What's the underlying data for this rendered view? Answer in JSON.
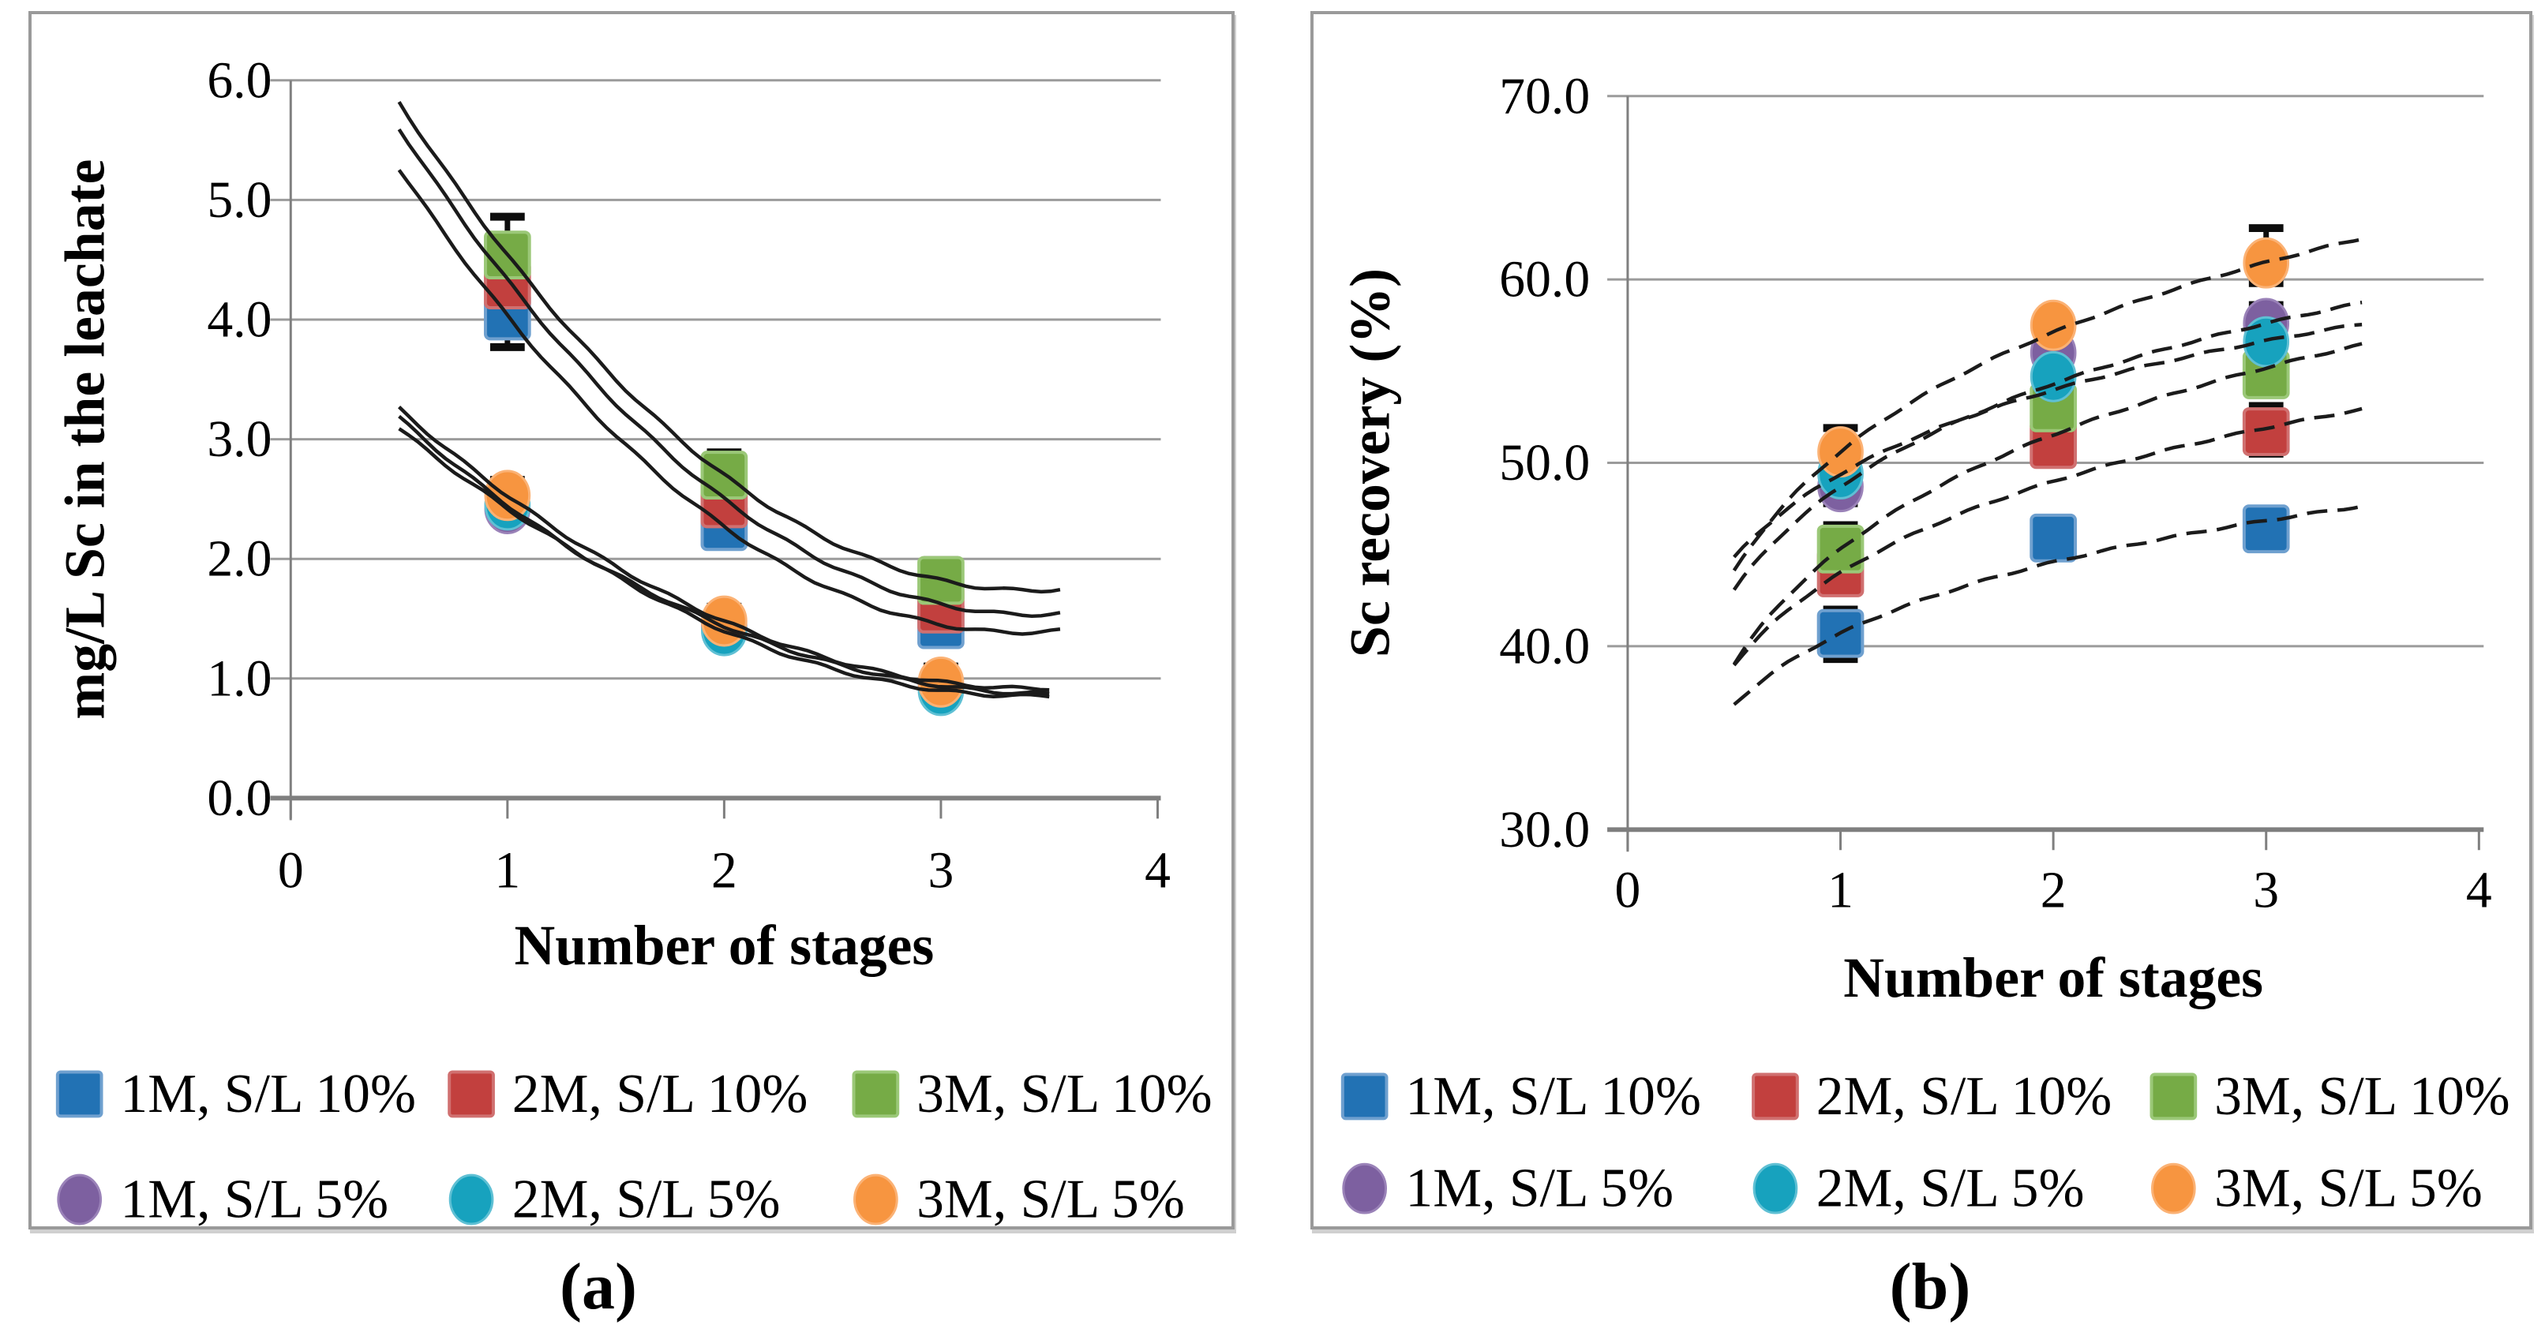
{
  "colors": {
    "blue": "#2272B4",
    "blue_edge": "#6FA0CF",
    "red": "#C2403E",
    "red_edge": "#D07070",
    "green": "#76AB46",
    "green_edge": "#9BC878",
    "purple": "#7D60A0",
    "purple_edge": "#9A82B8",
    "teal": "#17A2BE",
    "teal_edge": "#5FC0D4",
    "orange": "#F79540",
    "orange_edge": "#FBB275",
    "trend": "#1b1b1b",
    "grid": "#9b9b9b",
    "axis": "#7f7f7f",
    "error": "#0d0d0d",
    "text": "#000000",
    "panel_border": "#9a9a9a"
  },
  "chart_data": [
    {
      "id": "a",
      "caption": "(a)",
      "type": "scatter",
      "title": "",
      "xlabel": "Number of stages",
      "ylabel": "mg/L Sc in the leachate",
      "xlim": [
        0,
        4
      ],
      "ylim": [
        0,
        6
      ],
      "grid": true,
      "legend_position": "bottom",
      "xtick_values": [
        0,
        1,
        2,
        3,
        4
      ],
      "xtick_labels": [
        "0",
        "1",
        "2",
        "3",
        "4"
      ],
      "ytick_values": [
        0,
        1,
        2,
        3,
        4,
        5,
        6
      ],
      "ytick_labels": [
        "0.0",
        "1.0",
        "2.0",
        "3.0",
        "4.0",
        "5.0",
        "6.0"
      ],
      "line_style": "solid",
      "series": [
        {
          "name": "1M, S/L 10%",
          "marker": "square",
          "color": "blue",
          "points": [
            [
              1,
              4.03
            ],
            [
              2,
              2.27
            ],
            [
              3,
              1.45
            ]
          ]
        },
        {
          "name": "2M, S/L 10%",
          "marker": "square",
          "color": "red",
          "points": [
            [
              1,
              4.29
            ],
            [
              2,
              2.46
            ],
            [
              3,
              1.58
            ]
          ]
        },
        {
          "name": "3M, S/L 10%",
          "marker": "square",
          "color": "green",
          "points": [
            [
              1,
              4.54
            ],
            [
              2,
              2.7
            ],
            [
              3,
              1.82
            ]
          ]
        },
        {
          "name": "1M, S/L 5%",
          "marker": "circle",
          "color": "purple",
          "points": [
            [
              1,
              2.42
            ],
            [
              2,
              1.44
            ],
            [
              3,
              0.94
            ]
          ]
        },
        {
          "name": "2M, S/L 5%",
          "marker": "circle",
          "color": "teal",
          "points": [
            [
              1,
              2.45
            ],
            [
              2,
              1.4
            ],
            [
              3,
              0.9
            ]
          ]
        },
        {
          "name": "3M, S/L 5%",
          "marker": "circle",
          "color": "orange",
          "points": [
            [
              1,
              2.53
            ],
            [
              2,
              1.48
            ],
            [
              3,
              0.97
            ]
          ]
        }
      ],
      "trendlines": [
        {
          "fit": "quadratic",
          "a": 0.48,
          "b": -3.28,
          "c": 7.34,
          "x_start": 0.5,
          "x_end": 3.55
        },
        {
          "fit": "quadratic",
          "a": 0.475,
          "b": -3.255,
          "c": 7.11,
          "x_start": 0.5,
          "x_end": 3.55
        },
        {
          "fit": "quadratic",
          "a": 0.47,
          "b": -3.17,
          "c": 6.73,
          "x_start": 0.5,
          "x_end": 3.55
        },
        {
          "fit": "quadratic",
          "a": 0.24,
          "b": -1.7,
          "c": 3.88,
          "x_start": 0.5,
          "x_end": 3.5
        },
        {
          "fit": "quadratic",
          "a": 0.275,
          "b": -1.875,
          "c": 4.05,
          "x_start": 0.5,
          "x_end": 3.5
        },
        {
          "fit": "quadratic",
          "a": 0.27,
          "b": -1.86,
          "c": 4.12,
          "x_start": 0.5,
          "x_end": 3.5
        }
      ],
      "error_bars": [
        {
          "x": 1,
          "lo": 3.77,
          "hi": 4.86
        },
        {
          "x": 1,
          "lo": 4.24,
          "hi": 4.33
        },
        {
          "x": 1,
          "lo": 2.36,
          "hi": 2.66
        },
        {
          "x": 2,
          "lo": 2.52,
          "hi": 2.89
        },
        {
          "x": 2,
          "lo": 1.34,
          "hi": 1.6
        },
        {
          "x": 3,
          "lo": 1.62,
          "hi": 1.99
        },
        {
          "x": 3,
          "lo": 0.85,
          "hi": 1.1
        }
      ]
    },
    {
      "id": "b",
      "caption": "(b)",
      "type": "scatter",
      "title": "",
      "xlabel": "Number of stages",
      "ylabel": "Sc recovery (%)",
      "xlim": [
        0,
        4
      ],
      "ylim": [
        30,
        70
      ],
      "grid": true,
      "legend_position": "bottom",
      "xtick_values": [
        0,
        1,
        2,
        3,
        4
      ],
      "xtick_labels": [
        "0",
        "1",
        "2",
        "3",
        "4"
      ],
      "ytick_values": [
        30,
        40,
        50,
        60,
        70
      ],
      "ytick_labels": [
        "30.0",
        "40.0",
        "50.0",
        "60.0",
        "70.0"
      ],
      "line_style": "dashed",
      "series": [
        {
          "name": "1M, S/L 10%",
          "marker": "square",
          "color": "blue",
          "points": [
            [
              1,
              40.7
            ],
            [
              2,
              45.9
            ],
            [
              3,
              46.4
            ]
          ]
        },
        {
          "name": "2M, S/L 10%",
          "marker": "square",
          "color": "red",
          "points": [
            [
              1,
              44.0
            ],
            [
              2,
              51.0
            ],
            [
              3,
              51.7
            ]
          ]
        },
        {
          "name": "3M, S/L 10%",
          "marker": "square",
          "color": "green",
          "points": [
            [
              1,
              45.3
            ],
            [
              2,
              53.0
            ],
            [
              3,
              54.8
            ]
          ]
        },
        {
          "name": "1M, S/L 5%",
          "marker": "circle",
          "color": "purple",
          "points": [
            [
              1,
              48.7
            ],
            [
              2,
              56.0
            ],
            [
              3,
              57.6
            ]
          ]
        },
        {
          "name": "2M, S/L 5%",
          "marker": "circle",
          "color": "teal",
          "points": [
            [
              1,
              49.4
            ],
            [
              2,
              54.7
            ],
            [
              3,
              56.6
            ]
          ]
        },
        {
          "name": "3M, S/L 5%",
          "marker": "circle",
          "color": "orange",
          "points": [
            [
              1,
              50.6
            ],
            [
              2,
              57.5
            ],
            [
              3,
              60.9
            ]
          ]
        }
      ],
      "trendlines": [
        {
          "fit": "log",
          "y1": 40.7,
          "k": 5.6,
          "x_start": 0.5,
          "x_end": 3.45
        },
        {
          "fit": "log",
          "y1": 44.0,
          "k": 7.2,
          "x_start": 0.5,
          "x_end": 3.45
        },
        {
          "fit": "log",
          "y1": 45.3,
          "k": 9.0,
          "x_start": 0.5,
          "x_end": 3.45
        },
        {
          "fit": "log",
          "y1": 48.7,
          "k": 8.1,
          "x_start": 0.5,
          "x_end": 3.45
        },
        {
          "fit": "log",
          "y1": 49.4,
          "k": 6.6,
          "x_start": 0.5,
          "x_end": 3.45
        },
        {
          "fit": "log",
          "y1": 50.6,
          "k": 9.4,
          "x_start": 0.5,
          "x_end": 3.45
        }
      ],
      "error_bars": [
        {
          "x": 1,
          "lo": 47.8,
          "hi": 51.9
        },
        {
          "x": 1,
          "lo": 43.6,
          "hi": 46.6
        },
        {
          "x": 1,
          "lo": 39.3,
          "hi": 42.0
        },
        {
          "x": 2,
          "lo": 50.2,
          "hi": 52.1
        },
        {
          "x": 2,
          "lo": 44.9,
          "hi": 46.9
        },
        {
          "x": 3,
          "lo": 59.8,
          "hi": 62.8
        },
        {
          "x": 3,
          "lo": 55.2,
          "hi": 58.6
        },
        {
          "x": 3,
          "lo": 50.5,
          "hi": 53.1
        },
        {
          "x": 3,
          "lo": 45.4,
          "hi": 47.5
        }
      ]
    }
  ]
}
